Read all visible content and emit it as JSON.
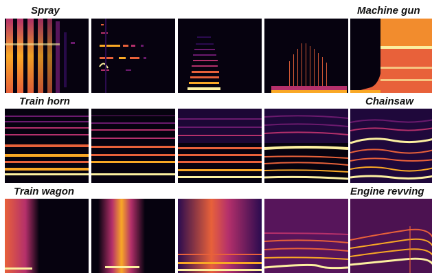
{
  "rows": [
    {
      "left_label": "Spray",
      "right_label": "Machine gun"
    },
    {
      "left_label": "Train horn",
      "right_label": "Chainsaw"
    },
    {
      "left_label": "Train wagon",
      "right_label": "Engine revving"
    }
  ],
  "colormap": [
    "#06020f",
    "#2b0b4f",
    "#6b1a6e",
    "#b5306b",
    "#e8613a",
    "#f9a825",
    "#fcf0a0"
  ]
}
